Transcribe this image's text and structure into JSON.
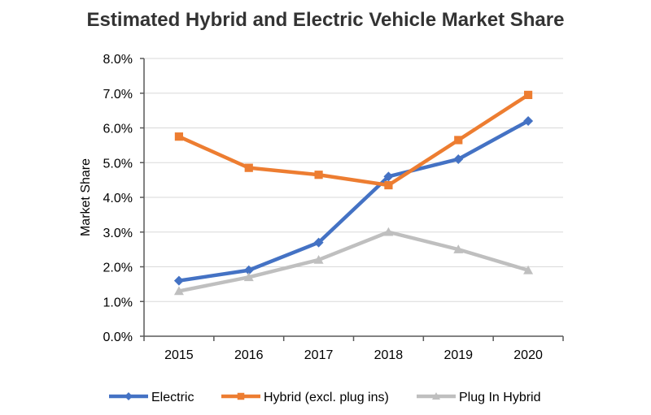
{
  "chart_data": {
    "type": "line",
    "title": "Estimated Hybrid and Electric Vehicle Market Share",
    "xlabel": "",
    "ylabel": "Market Share",
    "ylim": [
      0,
      8
    ],
    "y_ticks": [
      "0.0%",
      "1.0%",
      "2.0%",
      "3.0%",
      "4.0%",
      "5.0%",
      "6.0%",
      "7.0%",
      "8.0%"
    ],
    "categories": [
      "2015",
      "2016",
      "2017",
      "2018",
      "2019",
      "2020"
    ],
    "series": [
      {
        "name": "Electric",
        "color": "#4472c4",
        "marker": "diamond",
        "values": [
          1.6,
          1.9,
          2.7,
          4.6,
          5.1,
          6.2
        ]
      },
      {
        "name": "Hybrid (excl. plug ins)",
        "color": "#ed7d31",
        "marker": "square",
        "values": [
          5.75,
          4.85,
          4.65,
          4.35,
          5.65,
          6.95
        ]
      },
      {
        "name": "Plug In Hybrid",
        "color": "#bfbfbf",
        "marker": "triangle",
        "values": [
          1.3,
          1.7,
          2.2,
          3.0,
          2.5,
          1.9
        ]
      }
    ],
    "grid": true,
    "legend_position": "bottom"
  }
}
